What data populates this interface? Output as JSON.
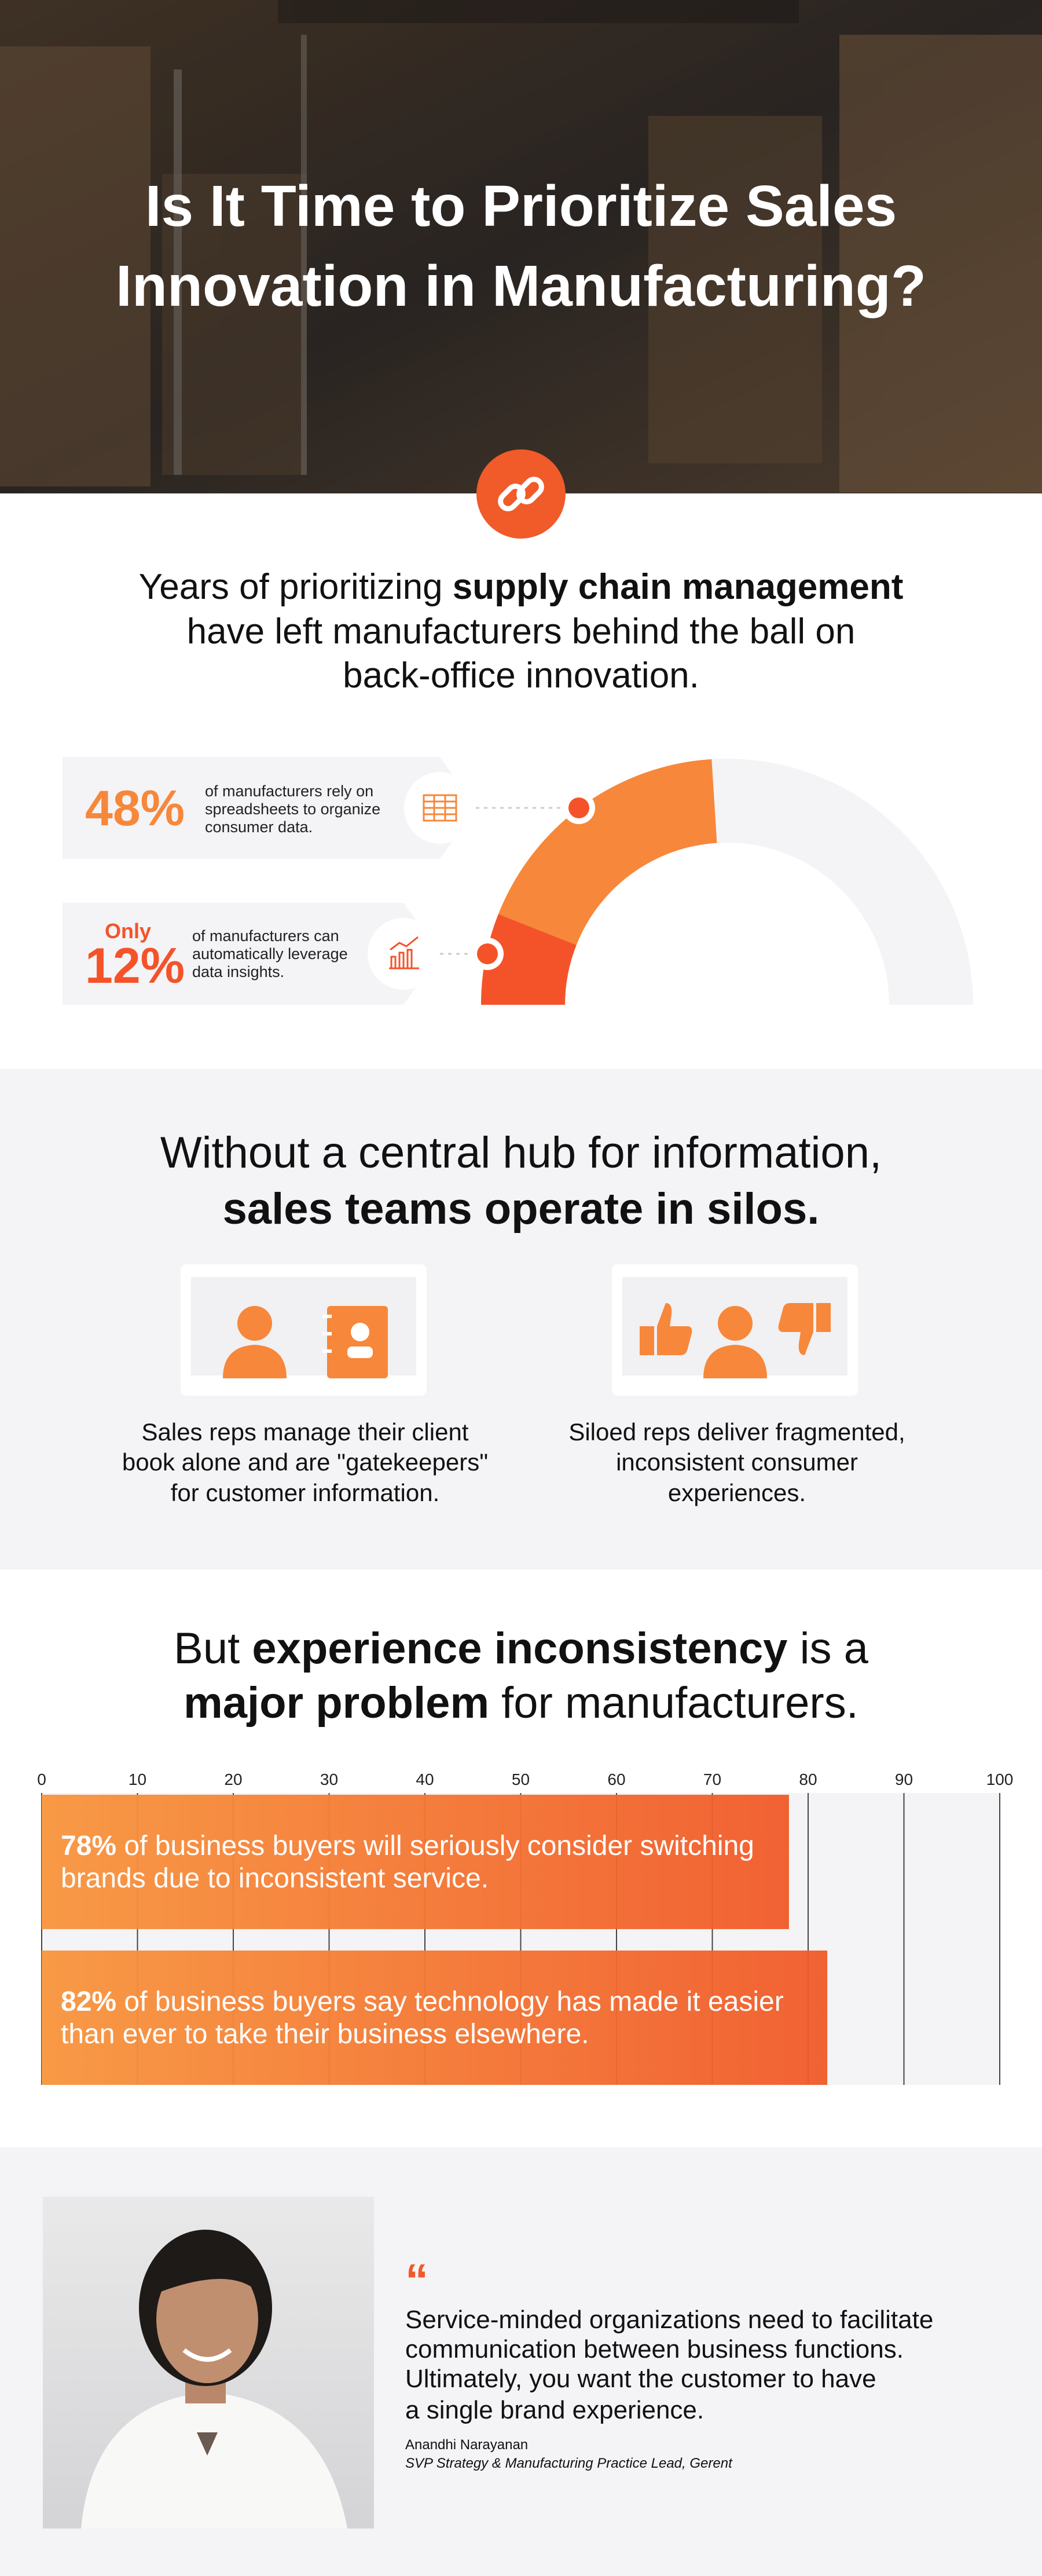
{
  "header": {
    "title_lines": [
      "Is It Time to Prioritize Sales",
      "Innovation in Manufacturing?"
    ]
  },
  "intro": {
    "lines": [
      [
        "Years of prioritizing ",
        "supply chain management"
      ],
      [
        "have left manufacturers behind the ball on"
      ],
      [
        "back-office innovation."
      ]
    ]
  },
  "stats": [
    {
      "value": 48,
      "label": "48%",
      "text_lines": [
        "of manufacturers rely on",
        "spreadsheets to organize",
        "consumer data."
      ],
      "color": "#f7873a"
    },
    {
      "prefix": "Only",
      "value": 12,
      "label": "12%",
      "text_lines": [
        "of manufacturers can",
        "automatically leverage",
        "data insights."
      ],
      "color": "#f4532a"
    }
  ],
  "silos": {
    "title_lines": [
      "Without a central hub for information,",
      "sales teams operate in silos."
    ],
    "items": [
      {
        "lines": [
          "Sales reps manage their client",
          "book alone and are \"gatekeepers\"",
          "for customer information."
        ]
      },
      {
        "lines": [
          "Siloed reps deliver fragmented,",
          "inconsistent consumer",
          "experiences."
        ]
      }
    ]
  },
  "chart": {
    "type": "bar",
    "title_lines": [
      [
        "But ",
        "experience inconsistency",
        " is a"
      ],
      [
        "major problem",
        " for manufacturers."
      ]
    ],
    "xlim": [
      0,
      100
    ],
    "xticks": [
      0,
      10,
      20,
      30,
      40,
      50,
      60,
      70,
      80,
      90,
      100
    ],
    "values": [
      78,
      82
    ],
    "value_labels": [
      "78%",
      "82%"
    ],
    "texts": [
      [
        " of business buyers will seriously consider switching",
        "brands due to inconsistent service."
      ],
      [
        " of business buyers say technology has made it easier",
        "than ever to take their business elsewhere."
      ]
    ],
    "grid": true
  },
  "quote": {
    "mark": "“",
    "lines": [
      "Service-minded organizations need to facilitate",
      "communication between business functions.",
      "Ultimately, you want the customer to have",
      "a single brand experience."
    ],
    "name": "Anandhi Narayanan",
    "role": "SVP Strategy & Manufacturing Practice Lead, Gerent"
  }
}
